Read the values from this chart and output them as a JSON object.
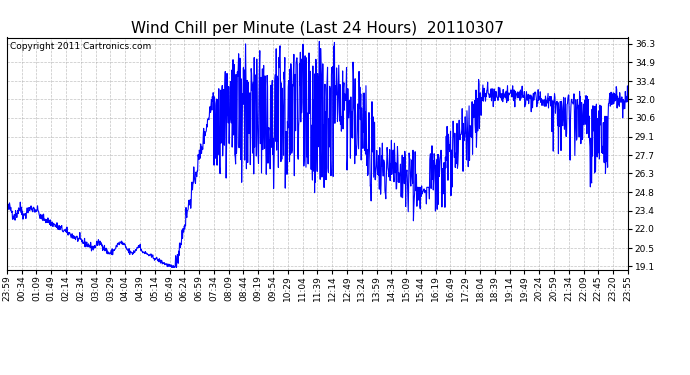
{
  "title": "Wind Chill per Minute (Last 24 Hours)  20110307",
  "copyright_text": "Copyright 2011 Cartronics.com",
  "line_color": "#0000FF",
  "background_color": "#FFFFFF",
  "plot_bg_color": "#FFFFFF",
  "grid_color": "#AAAAAA",
  "yticks": [
    19.1,
    20.5,
    22.0,
    23.4,
    24.8,
    26.3,
    27.7,
    29.1,
    30.6,
    32.0,
    33.4,
    34.9,
    36.3
  ],
  "ylim": [
    18.8,
    36.8
  ],
  "xtick_labels": [
    "23:59",
    "00:34",
    "01:09",
    "01:49",
    "02:14",
    "02:34",
    "03:04",
    "03:29",
    "04:04",
    "04:39",
    "05:14",
    "05:49",
    "06:24",
    "06:59",
    "07:34",
    "08:09",
    "08:44",
    "09:19",
    "09:54",
    "10:29",
    "11:04",
    "11:39",
    "12:14",
    "12:49",
    "13:24",
    "13:59",
    "14:34",
    "15:09",
    "15:44",
    "16:19",
    "16:49",
    "17:29",
    "18:04",
    "18:39",
    "19:14",
    "19:49",
    "20:24",
    "20:59",
    "21:34",
    "22:09",
    "22:45",
    "23:20",
    "23:55"
  ],
  "title_fontsize": 11,
  "tick_fontsize": 6.5,
  "copyright_fontsize": 6.5,
  "line_width": 0.8
}
